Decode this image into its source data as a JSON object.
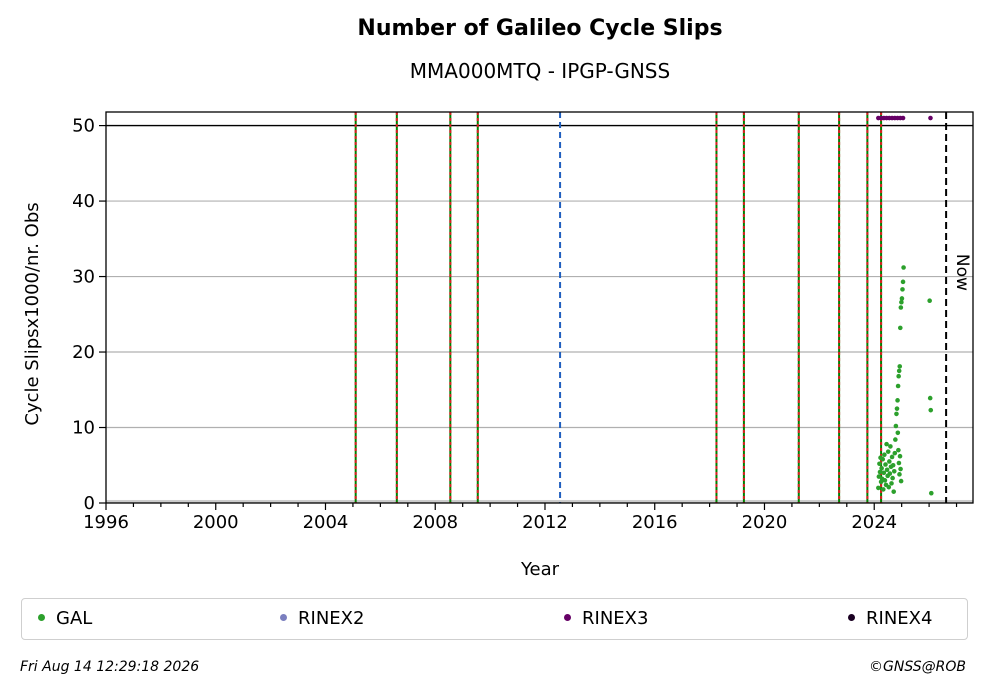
{
  "chart_data": {
    "type": "scatter",
    "title": "Number of Galileo Cycle Slips",
    "subtitle": "MMA000MTQ - IPGP-GNSS",
    "xlabel": "Year",
    "ylabel": "Cycle Slipsx1000/nr. Obs",
    "xlim": [
      1996,
      2027.6
    ],
    "ylim": [
      0,
      51.8
    ],
    "x_ticks": [
      1996,
      2000,
      2004,
      2008,
      2012,
      2016,
      2020,
      2024
    ],
    "y_ticks": [
      0,
      10,
      20,
      30,
      40,
      50
    ],
    "grid": "horizontal",
    "cap_line": 50,
    "now_label": "Now",
    "now_x": 2026.62,
    "event_lines_red_green": [
      2005.1,
      2006.6,
      2008.55,
      2009.55,
      2018.25,
      2019.25,
      2021.25,
      2022.72,
      2023.75,
      2024.25
    ],
    "event_lines_blue": [
      2012.55
    ],
    "legend_position": "bottom",
    "series": [
      {
        "name": "GAL",
        "color": "#2ca02c",
        "points": [
          [
            2024.15,
            2.0
          ],
          [
            2024.17,
            3.5
          ],
          [
            2024.19,
            5.2
          ],
          [
            2024.21,
            4.1
          ],
          [
            2024.23,
            6.0
          ],
          [
            2024.25,
            2.8
          ],
          [
            2024.27,
            4.6
          ],
          [
            2024.29,
            3.2
          ],
          [
            2024.31,
            5.8
          ],
          [
            2024.33,
            1.8
          ],
          [
            2024.35,
            4.0
          ],
          [
            2024.37,
            6.4
          ],
          [
            2024.39,
            3.0
          ],
          [
            2024.41,
            5.1
          ],
          [
            2024.43,
            2.4
          ],
          [
            2024.45,
            7.8
          ],
          [
            2024.47,
            4.4
          ],
          [
            2024.49,
            3.6
          ],
          [
            2024.51,
            6.8
          ],
          [
            2024.53,
            2.1
          ],
          [
            2024.55,
            5.5
          ],
          [
            2024.57,
            3.9
          ],
          [
            2024.59,
            7.5
          ],
          [
            2024.61,
            4.8
          ],
          [
            2024.63,
            2.6
          ],
          [
            2024.65,
            6.1
          ],
          [
            2024.67,
            3.3
          ],
          [
            2024.69,
            5.0
          ],
          [
            2024.71,
            1.5
          ],
          [
            2024.73,
            4.2
          ],
          [
            2024.75,
            6.6
          ],
          [
            2024.77,
            8.4
          ],
          [
            2024.79,
            10.2
          ],
          [
            2024.81,
            11.8
          ],
          [
            2024.83,
            12.5
          ],
          [
            2024.85,
            13.6
          ],
          [
            2024.87,
            15.5
          ],
          [
            2024.89,
            16.8
          ],
          [
            2024.91,
            17.5
          ],
          [
            2024.93,
            18.1
          ],
          [
            2024.95,
            23.2
          ],
          [
            2024.97,
            25.9
          ],
          [
            2024.99,
            26.6
          ],
          [
            2025.01,
            27.1
          ],
          [
            2025.03,
            28.3
          ],
          [
            2025.05,
            29.3
          ],
          [
            2025.07,
            31.2
          ],
          [
            2024.86,
            9.3
          ],
          [
            2024.88,
            7.0
          ],
          [
            2024.9,
            5.3
          ],
          [
            2024.92,
            3.8
          ],
          [
            2024.94,
            6.2
          ],
          [
            2024.96,
            4.5
          ],
          [
            2024.98,
            2.9
          ],
          [
            2026.02,
            26.8
          ],
          [
            2026.04,
            13.9
          ],
          [
            2026.06,
            12.3
          ],
          [
            2026.08,
            1.3
          ]
        ]
      },
      {
        "name": "RINEX2",
        "color": "#7b7fbf",
        "points": []
      },
      {
        "name": "RINEX3",
        "color": "#660066",
        "points": [
          [
            2024.15,
            51
          ],
          [
            2024.25,
            51
          ],
          [
            2024.35,
            51
          ],
          [
            2024.45,
            51
          ],
          [
            2024.55,
            51
          ],
          [
            2024.65,
            51
          ],
          [
            2024.75,
            51
          ],
          [
            2024.85,
            51
          ],
          [
            2024.95,
            51
          ],
          [
            2025.05,
            51
          ],
          [
            2026.05,
            51
          ]
        ]
      },
      {
        "name": "RINEX4",
        "color": "#1a0022",
        "points": []
      }
    ]
  },
  "footer": {
    "timestamp": "Fri Aug 14 12:29:18 2026",
    "credit": "©GNSS@ROB"
  }
}
